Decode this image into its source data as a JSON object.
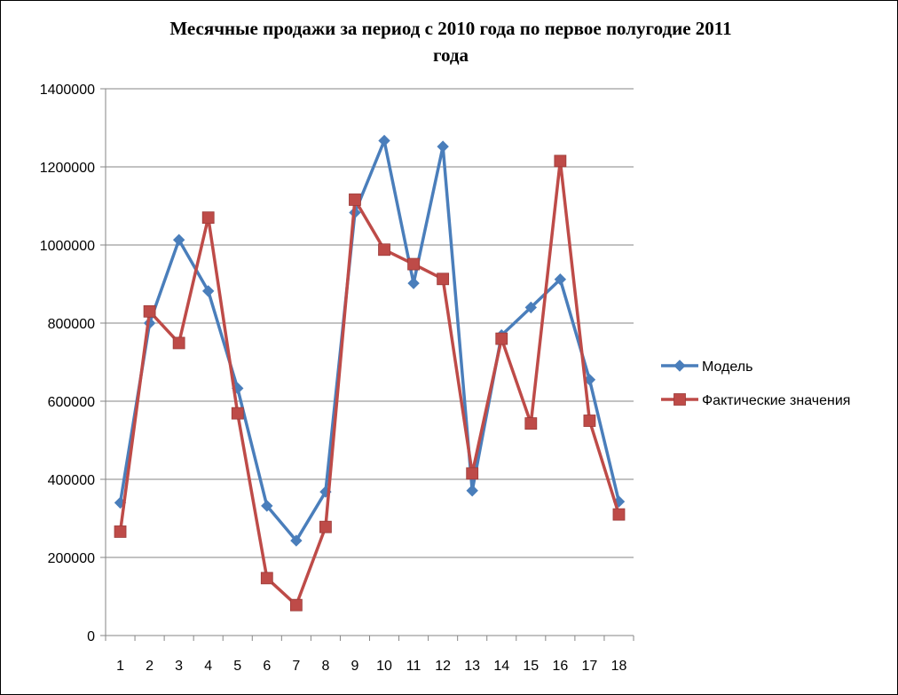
{
  "chart_data": {
    "type": "line",
    "title": "Месячные продажи за период с 2010 года по первое полугодие 2011",
    "title_line2": "года",
    "xlabel": "",
    "ylabel": "",
    "categories": [
      "1",
      "2",
      "3",
      "4",
      "5",
      "6",
      "7",
      "8",
      "9",
      "10",
      "11",
      "12",
      "13",
      "14",
      "15",
      "16",
      "17",
      "18"
    ],
    "ylim": [
      0,
      1400000
    ],
    "yticks": [
      "0",
      "200000",
      "400000",
      "600000",
      "800000",
      "1000000",
      "1200000",
      "1400000"
    ],
    "grid": true,
    "legend_position": "right",
    "series": [
      {
        "name": "Модель",
        "color": "#4a7ebb",
        "marker": "diamond",
        "values": [
          340000,
          800000,
          1013000,
          882000,
          633000,
          332000,
          243000,
          368000,
          1083000,
          1267000,
          902000,
          1252000,
          371000,
          769000,
          840000,
          912000,
          655000,
          343000
        ]
      },
      {
        "name": "Фактические значения",
        "color": "#be4b48",
        "marker": "square",
        "values": [
          266000,
          830000,
          749000,
          1070000,
          569000,
          147000,
          78000,
          278000,
          1116000,
          988000,
          951000,
          913000,
          415000,
          760000,
          543000,
          1215000,
          550000,
          310000
        ]
      }
    ]
  }
}
